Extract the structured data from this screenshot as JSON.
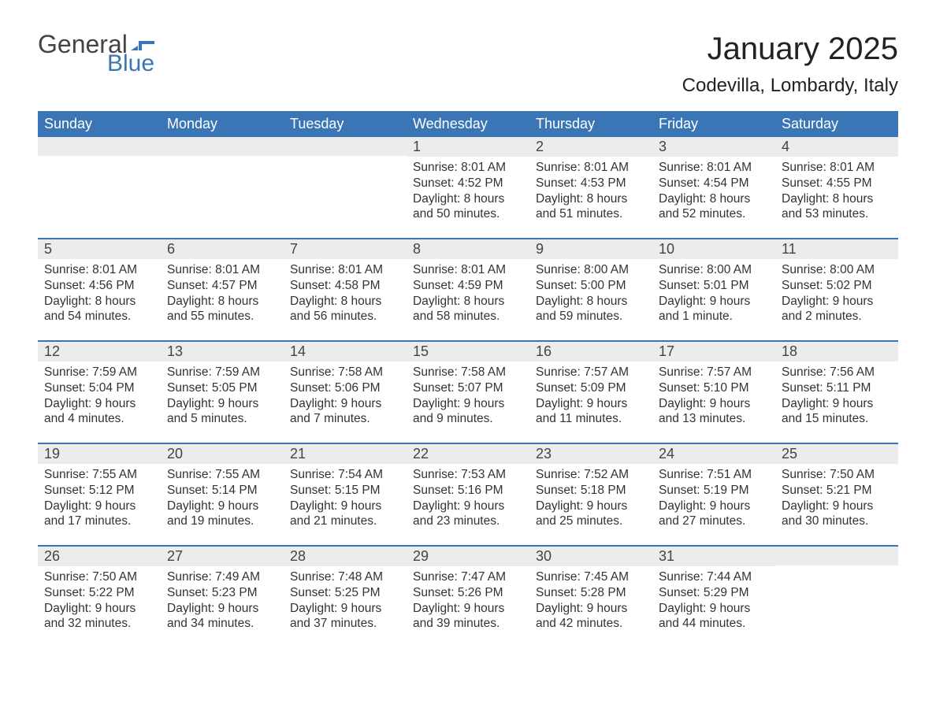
{
  "logo": {
    "text_general": "General",
    "text_blue": "Blue",
    "flag_color": "#3a76b6"
  },
  "header": {
    "month_title": "January 2025",
    "location": "Codevilla, Lombardy, Italy"
  },
  "colors": {
    "header_bg": "#3a76b6",
    "header_text": "#ffffff",
    "daynum_bg": "#ececec",
    "text": "#333333",
    "week_border": "#3a76b6",
    "page_bg": "#ffffff"
  },
  "day_headers": [
    "Sunday",
    "Monday",
    "Tuesday",
    "Wednesday",
    "Thursday",
    "Friday",
    "Saturday"
  ],
  "weeks": [
    [
      {
        "day": "",
        "sunrise": "",
        "sunset": "",
        "daylight1": "",
        "daylight2": ""
      },
      {
        "day": "",
        "sunrise": "",
        "sunset": "",
        "daylight1": "",
        "daylight2": ""
      },
      {
        "day": "",
        "sunrise": "",
        "sunset": "",
        "daylight1": "",
        "daylight2": ""
      },
      {
        "day": "1",
        "sunrise": "Sunrise: 8:01 AM",
        "sunset": "Sunset: 4:52 PM",
        "daylight1": "Daylight: 8 hours",
        "daylight2": "and 50 minutes."
      },
      {
        "day": "2",
        "sunrise": "Sunrise: 8:01 AM",
        "sunset": "Sunset: 4:53 PM",
        "daylight1": "Daylight: 8 hours",
        "daylight2": "and 51 minutes."
      },
      {
        "day": "3",
        "sunrise": "Sunrise: 8:01 AM",
        "sunset": "Sunset: 4:54 PM",
        "daylight1": "Daylight: 8 hours",
        "daylight2": "and 52 minutes."
      },
      {
        "day": "4",
        "sunrise": "Sunrise: 8:01 AM",
        "sunset": "Sunset: 4:55 PM",
        "daylight1": "Daylight: 8 hours",
        "daylight2": "and 53 minutes."
      }
    ],
    [
      {
        "day": "5",
        "sunrise": "Sunrise: 8:01 AM",
        "sunset": "Sunset: 4:56 PM",
        "daylight1": "Daylight: 8 hours",
        "daylight2": "and 54 minutes."
      },
      {
        "day": "6",
        "sunrise": "Sunrise: 8:01 AM",
        "sunset": "Sunset: 4:57 PM",
        "daylight1": "Daylight: 8 hours",
        "daylight2": "and 55 minutes."
      },
      {
        "day": "7",
        "sunrise": "Sunrise: 8:01 AM",
        "sunset": "Sunset: 4:58 PM",
        "daylight1": "Daylight: 8 hours",
        "daylight2": "and 56 minutes."
      },
      {
        "day": "8",
        "sunrise": "Sunrise: 8:01 AM",
        "sunset": "Sunset: 4:59 PM",
        "daylight1": "Daylight: 8 hours",
        "daylight2": "and 58 minutes."
      },
      {
        "day": "9",
        "sunrise": "Sunrise: 8:00 AM",
        "sunset": "Sunset: 5:00 PM",
        "daylight1": "Daylight: 8 hours",
        "daylight2": "and 59 minutes."
      },
      {
        "day": "10",
        "sunrise": "Sunrise: 8:00 AM",
        "sunset": "Sunset: 5:01 PM",
        "daylight1": "Daylight: 9 hours",
        "daylight2": "and 1 minute."
      },
      {
        "day": "11",
        "sunrise": "Sunrise: 8:00 AM",
        "sunset": "Sunset: 5:02 PM",
        "daylight1": "Daylight: 9 hours",
        "daylight2": "and 2 minutes."
      }
    ],
    [
      {
        "day": "12",
        "sunrise": "Sunrise: 7:59 AM",
        "sunset": "Sunset: 5:04 PM",
        "daylight1": "Daylight: 9 hours",
        "daylight2": "and 4 minutes."
      },
      {
        "day": "13",
        "sunrise": "Sunrise: 7:59 AM",
        "sunset": "Sunset: 5:05 PM",
        "daylight1": "Daylight: 9 hours",
        "daylight2": "and 5 minutes."
      },
      {
        "day": "14",
        "sunrise": "Sunrise: 7:58 AM",
        "sunset": "Sunset: 5:06 PM",
        "daylight1": "Daylight: 9 hours",
        "daylight2": "and 7 minutes."
      },
      {
        "day": "15",
        "sunrise": "Sunrise: 7:58 AM",
        "sunset": "Sunset: 5:07 PM",
        "daylight1": "Daylight: 9 hours",
        "daylight2": "and 9 minutes."
      },
      {
        "day": "16",
        "sunrise": "Sunrise: 7:57 AM",
        "sunset": "Sunset: 5:09 PM",
        "daylight1": "Daylight: 9 hours",
        "daylight2": "and 11 minutes."
      },
      {
        "day": "17",
        "sunrise": "Sunrise: 7:57 AM",
        "sunset": "Sunset: 5:10 PM",
        "daylight1": "Daylight: 9 hours",
        "daylight2": "and 13 minutes."
      },
      {
        "day": "18",
        "sunrise": "Sunrise: 7:56 AM",
        "sunset": "Sunset: 5:11 PM",
        "daylight1": "Daylight: 9 hours",
        "daylight2": "and 15 minutes."
      }
    ],
    [
      {
        "day": "19",
        "sunrise": "Sunrise: 7:55 AM",
        "sunset": "Sunset: 5:12 PM",
        "daylight1": "Daylight: 9 hours",
        "daylight2": "and 17 minutes."
      },
      {
        "day": "20",
        "sunrise": "Sunrise: 7:55 AM",
        "sunset": "Sunset: 5:14 PM",
        "daylight1": "Daylight: 9 hours",
        "daylight2": "and 19 minutes."
      },
      {
        "day": "21",
        "sunrise": "Sunrise: 7:54 AM",
        "sunset": "Sunset: 5:15 PM",
        "daylight1": "Daylight: 9 hours",
        "daylight2": "and 21 minutes."
      },
      {
        "day": "22",
        "sunrise": "Sunrise: 7:53 AM",
        "sunset": "Sunset: 5:16 PM",
        "daylight1": "Daylight: 9 hours",
        "daylight2": "and 23 minutes."
      },
      {
        "day": "23",
        "sunrise": "Sunrise: 7:52 AM",
        "sunset": "Sunset: 5:18 PM",
        "daylight1": "Daylight: 9 hours",
        "daylight2": "and 25 minutes."
      },
      {
        "day": "24",
        "sunrise": "Sunrise: 7:51 AM",
        "sunset": "Sunset: 5:19 PM",
        "daylight1": "Daylight: 9 hours",
        "daylight2": "and 27 minutes."
      },
      {
        "day": "25",
        "sunrise": "Sunrise: 7:50 AM",
        "sunset": "Sunset: 5:21 PM",
        "daylight1": "Daylight: 9 hours",
        "daylight2": "and 30 minutes."
      }
    ],
    [
      {
        "day": "26",
        "sunrise": "Sunrise: 7:50 AM",
        "sunset": "Sunset: 5:22 PM",
        "daylight1": "Daylight: 9 hours",
        "daylight2": "and 32 minutes."
      },
      {
        "day": "27",
        "sunrise": "Sunrise: 7:49 AM",
        "sunset": "Sunset: 5:23 PM",
        "daylight1": "Daylight: 9 hours",
        "daylight2": "and 34 minutes."
      },
      {
        "day": "28",
        "sunrise": "Sunrise: 7:48 AM",
        "sunset": "Sunset: 5:25 PM",
        "daylight1": "Daylight: 9 hours",
        "daylight2": "and 37 minutes."
      },
      {
        "day": "29",
        "sunrise": "Sunrise: 7:47 AM",
        "sunset": "Sunset: 5:26 PM",
        "daylight1": "Daylight: 9 hours",
        "daylight2": "and 39 minutes."
      },
      {
        "day": "30",
        "sunrise": "Sunrise: 7:45 AM",
        "sunset": "Sunset: 5:28 PM",
        "daylight1": "Daylight: 9 hours",
        "daylight2": "and 42 minutes."
      },
      {
        "day": "31",
        "sunrise": "Sunrise: 7:44 AM",
        "sunset": "Sunset: 5:29 PM",
        "daylight1": "Daylight: 9 hours",
        "daylight2": "and 44 minutes."
      },
      {
        "day": "",
        "sunrise": "",
        "sunset": "",
        "daylight1": "",
        "daylight2": ""
      }
    ]
  ]
}
